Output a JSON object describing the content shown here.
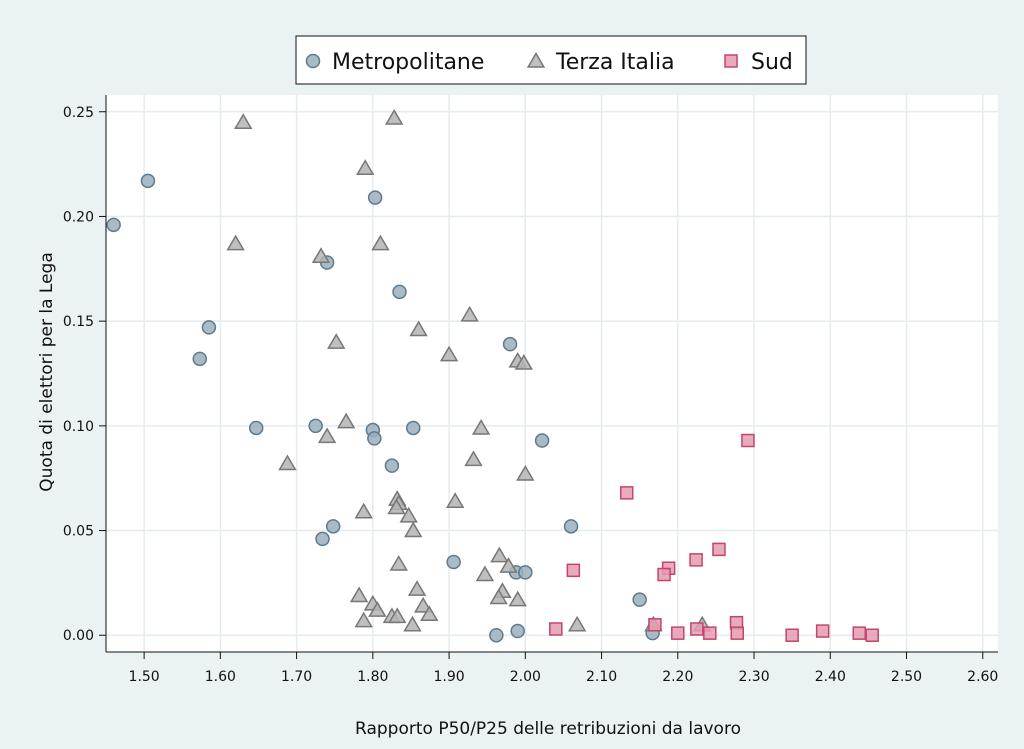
{
  "chart_data": {
    "type": "scatter",
    "title": "",
    "xlabel": "Rapporto P50/P25 delle retribuzioni da lavoro",
    "ylabel": "Quota di elettori per la Lega",
    "xlim": [
      1.45,
      2.62
    ],
    "ylim": [
      -0.008,
      0.258
    ],
    "x_ticks": [
      1.5,
      1.6,
      1.7,
      1.8,
      1.9,
      2.0,
      2.1,
      2.2,
      2.3,
      2.4,
      2.5,
      2.6
    ],
    "x_tick_labels": [
      "1.50",
      "1.60",
      "1.70",
      "1.80",
      "1.90",
      "2.00",
      "2.10",
      "2.20",
      "2.30",
      "2.40",
      "2.50",
      "2.60"
    ],
    "y_ticks": [
      0.0,
      0.05,
      0.1,
      0.15,
      0.2,
      0.25
    ],
    "y_tick_labels": [
      "0.00",
      "0.05",
      "0.10",
      "0.15",
      "0.20",
      "0.25"
    ],
    "grid": true,
    "legend_position": "top",
    "series": [
      {
        "name": "Metropolitane",
        "marker": "circle",
        "color": "#9aafbd",
        "stroke": "#5e7a8c",
        "points": [
          [
            1.46,
            0.196
          ],
          [
            1.505,
            0.217
          ],
          [
            1.585,
            0.147
          ],
          [
            1.573,
            0.132
          ],
          [
            1.647,
            0.099
          ],
          [
            1.725,
            0.1
          ],
          [
            1.74,
            0.178
          ],
          [
            1.803,
            0.209
          ],
          [
            1.835,
            0.164
          ],
          [
            1.8,
            0.098
          ],
          [
            1.802,
            0.094
          ],
          [
            1.853,
            0.099
          ],
          [
            1.825,
            0.081
          ],
          [
            1.748,
            0.052
          ],
          [
            1.734,
            0.046
          ],
          [
            1.98,
            0.139
          ],
          [
            2.022,
            0.093
          ],
          [
            2.06,
            0.052
          ],
          [
            1.906,
            0.035
          ],
          [
            1.988,
            0.03
          ],
          [
            2.0,
            0.03
          ],
          [
            2.15,
            0.017
          ],
          [
            1.962,
            0.0
          ],
          [
            1.99,
            0.002
          ],
          [
            2.167,
            0.001
          ]
        ]
      },
      {
        "name": "Terza Italia",
        "marker": "triangle",
        "color": "#b4b4b4",
        "stroke": "#777777",
        "points": [
          [
            1.63,
            0.245
          ],
          [
            1.828,
            0.247
          ],
          [
            1.79,
            0.223
          ],
          [
            1.62,
            0.187
          ],
          [
            1.81,
            0.187
          ],
          [
            1.732,
            0.181
          ],
          [
            1.86,
            0.146
          ],
          [
            1.752,
            0.14
          ],
          [
            1.927,
            0.153
          ],
          [
            1.9,
            0.134
          ],
          [
            1.99,
            0.131
          ],
          [
            1.998,
            0.13
          ],
          [
            1.765,
            0.102
          ],
          [
            1.74,
            0.095
          ],
          [
            1.942,
            0.099
          ],
          [
            1.688,
            0.082
          ],
          [
            1.932,
            0.084
          ],
          [
            2.0,
            0.077
          ],
          [
            1.832,
            0.065
          ],
          [
            1.834,
            0.063
          ],
          [
            1.831,
            0.061
          ],
          [
            1.908,
            0.064
          ],
          [
            1.788,
            0.059
          ],
          [
            1.847,
            0.057
          ],
          [
            1.853,
            0.05
          ],
          [
            1.834,
            0.034
          ],
          [
            1.966,
            0.038
          ],
          [
            1.978,
            0.033
          ],
          [
            1.947,
            0.029
          ],
          [
            1.858,
            0.022
          ],
          [
            1.97,
            0.021
          ],
          [
            1.965,
            0.018
          ],
          [
            1.99,
            0.017
          ],
          [
            1.782,
            0.019
          ],
          [
            1.8,
            0.015
          ],
          [
            1.806,
            0.012
          ],
          [
            1.866,
            0.014
          ],
          [
            1.874,
            0.01
          ],
          [
            1.825,
            0.009
          ],
          [
            1.832,
            0.009
          ],
          [
            1.788,
            0.007
          ],
          [
            1.852,
            0.005
          ],
          [
            2.068,
            0.005
          ],
          [
            2.168,
            0.005
          ],
          [
            2.232,
            0.005
          ]
        ]
      },
      {
        "name": "Sud",
        "marker": "square",
        "color": "#e59bb0",
        "stroke": "#c2466b",
        "points": [
          [
            2.292,
            0.093
          ],
          [
            2.133,
            0.068
          ],
          [
            2.254,
            0.041
          ],
          [
            2.224,
            0.036
          ],
          [
            2.188,
            0.032
          ],
          [
            2.182,
            0.029
          ],
          [
            2.063,
            0.031
          ],
          [
            2.04,
            0.003
          ],
          [
            2.17,
            0.005
          ],
          [
            2.2,
            0.001
          ],
          [
            2.225,
            0.003
          ],
          [
            2.242,
            0.001
          ],
          [
            2.277,
            0.006
          ],
          [
            2.278,
            0.001
          ],
          [
            2.35,
            0.0
          ],
          [
            2.39,
            0.002
          ],
          [
            2.438,
            0.001
          ],
          [
            2.455,
            0.0
          ]
        ]
      }
    ]
  }
}
